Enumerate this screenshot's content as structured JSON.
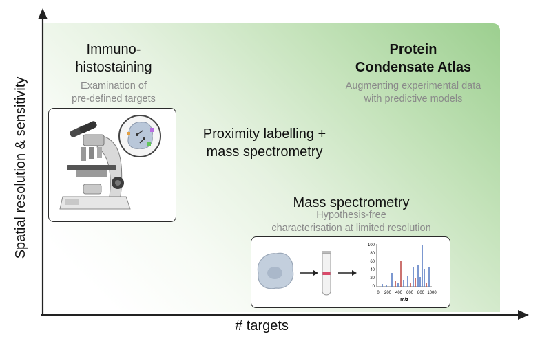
{
  "axes": {
    "x_label": "# targets",
    "y_label": "Spatial resolution & sensitivity"
  },
  "immuno": {
    "title_line1": "Immuno-",
    "title_line2": "histostaining",
    "sub_line1": "Examination of",
    "sub_line2": "pre-defined targets"
  },
  "atlas": {
    "title_line1": "Protein",
    "title_line2": "Condensate Atlas",
    "sub_line1": "Augmenting experimental data",
    "sub_line2": "with predictive models"
  },
  "proximity": {
    "line1": "Proximity labelling +",
    "line2": "mass spectrometry"
  },
  "mass_spec": {
    "title": "Mass spectrometry",
    "sub_line1": "Hypothesis-free",
    "sub_line2": "characterisation at limited resolution"
  },
  "spectrum": {
    "y_ticks": [
      "100",
      "80",
      "60",
      "40",
      "20",
      "0"
    ],
    "x_ticks": [
      "0",
      "200",
      "400",
      "600",
      "800",
      "1000"
    ],
    "x_label": "m/z"
  },
  "icons": {
    "microscope": "microscope-icon",
    "cell": "cell-icon",
    "tube": "test-tube-icon",
    "arrow": "arrow-right-icon"
  },
  "colors": {
    "gradient_strong": "#9ccf8f",
    "gradient_light": "#ffffff",
    "peak_blue": "#5b7fc4",
    "peak_red": "#c0504d",
    "tube_band": "#d94a6a"
  }
}
